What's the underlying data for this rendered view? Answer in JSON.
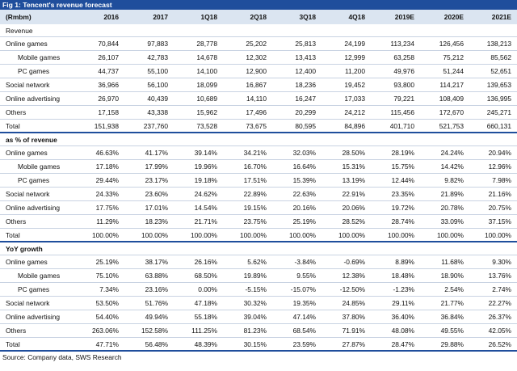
{
  "title": "Fig 1: Tencent's revenue forecast",
  "header": [
    "(Rmbm)",
    "2016",
    "2017",
    "1Q18",
    "2Q18",
    "3Q18",
    "4Q18",
    "2019E",
    "2020E",
    "2021E"
  ],
  "revenue": {
    "heading": "Revenue",
    "rows": [
      {
        "label": "Online games",
        "indent": false,
        "values": [
          "70,844",
          "97,883",
          "28,778",
          "25,202",
          "25,813",
          "24,199",
          "113,234",
          "126,456",
          "138,213"
        ]
      },
      {
        "label": "Mobile games",
        "indent": true,
        "values": [
          "26,107",
          "42,783",
          "14,678",
          "12,302",
          "13,413",
          "12,999",
          "63,258",
          "75,212",
          "85,562"
        ]
      },
      {
        "label": "PC games",
        "indent": true,
        "values": [
          "44,737",
          "55,100",
          "14,100",
          "12,900",
          "12,400",
          "11,200",
          "49,976",
          "51,244",
          "52,651"
        ]
      },
      {
        "label": "Social network",
        "indent": false,
        "values": [
          "36,966",
          "56,100",
          "18,099",
          "16,867",
          "18,236",
          "19,452",
          "93,800",
          "114,217",
          "139,653"
        ]
      },
      {
        "label": "Online advertising",
        "indent": false,
        "values": [
          "26,970",
          "40,439",
          "10,689",
          "14,110",
          "16,247",
          "17,033",
          "79,221",
          "108,409",
          "136,995"
        ]
      },
      {
        "label": "Others",
        "indent": false,
        "values": [
          "17,158",
          "43,338",
          "15,962",
          "17,496",
          "20,299",
          "24,212",
          "115,456",
          "172,670",
          "245,271"
        ]
      },
      {
        "label": "Total",
        "indent": false,
        "values": [
          "151,938",
          "237,760",
          "73,528",
          "73,675",
          "80,595",
          "84,896",
          "401,710",
          "521,753",
          "660,131"
        ]
      }
    ]
  },
  "pct": {
    "heading": "as % of revenue",
    "rows": [
      {
        "label": "Online games",
        "indent": false,
        "values": [
          "46.63%",
          "41.17%",
          "39.14%",
          "34.21%",
          "32.03%",
          "28.50%",
          "28.19%",
          "24.24%",
          "20.94%"
        ]
      },
      {
        "label": "Mobile games",
        "indent": true,
        "values": [
          "17.18%",
          "17.99%",
          "19.96%",
          "16.70%",
          "16.64%",
          "15.31%",
          "15.75%",
          "14.42%",
          "12.96%"
        ]
      },
      {
        "label": "PC games",
        "indent": true,
        "values": [
          "29.44%",
          "23.17%",
          "19.18%",
          "17.51%",
          "15.39%",
          "13.19%",
          "12.44%",
          "9.82%",
          "7.98%"
        ]
      },
      {
        "label": "Social network",
        "indent": false,
        "values": [
          "24.33%",
          "23.60%",
          "24.62%",
          "22.89%",
          "22.63%",
          "22.91%",
          "23.35%",
          "21.89%",
          "21.16%"
        ]
      },
      {
        "label": "Online advertising",
        "indent": false,
        "values": [
          "17.75%",
          "17.01%",
          "14.54%",
          "19.15%",
          "20.16%",
          "20.06%",
          "19.72%",
          "20.78%",
          "20.75%"
        ]
      },
      {
        "label": "Others",
        "indent": false,
        "values": [
          "11.29%",
          "18.23%",
          "21.71%",
          "23.75%",
          "25.19%",
          "28.52%",
          "28.74%",
          "33.09%",
          "37.15%"
        ]
      },
      {
        "label": "Total",
        "indent": false,
        "values": [
          "100.00%",
          "100.00%",
          "100.00%",
          "100.00%",
          "100.00%",
          "100.00%",
          "100.00%",
          "100.00%",
          "100.00%"
        ]
      }
    ]
  },
  "yoy": {
    "heading": "YoY growth",
    "rows": [
      {
        "label": "Online games",
        "indent": false,
        "values": [
          "25.19%",
          "38.17%",
          "26.16%",
          "5.62%",
          "-3.84%",
          "-0.69%",
          "8.89%",
          "11.68%",
          "9.30%"
        ]
      },
      {
        "label": "Mobile games",
        "indent": true,
        "values": [
          "75.10%",
          "63.88%",
          "68.50%",
          "19.89%",
          "9.55%",
          "12.38%",
          "18.48%",
          "18.90%",
          "13.76%"
        ]
      },
      {
        "label": "PC games",
        "indent": true,
        "values": [
          "7.34%",
          "23.16%",
          "0.00%",
          "-5.15%",
          "-15.07%",
          "-12.50%",
          "-1.23%",
          "2.54%",
          "2.74%"
        ]
      },
      {
        "label": "Social network",
        "indent": false,
        "values": [
          "53.50%",
          "51.76%",
          "47.18%",
          "30.32%",
          "19.35%",
          "24.85%",
          "29.11%",
          "21.77%",
          "22.27%"
        ]
      },
      {
        "label": "Online advertising",
        "indent": false,
        "values": [
          "54.40%",
          "49.94%",
          "55.18%",
          "39.04%",
          "47.14%",
          "37.80%",
          "36.40%",
          "36.84%",
          "26.37%"
        ]
      },
      {
        "label": "Others",
        "indent": false,
        "values": [
          "263.06%",
          "152.58%",
          "111.25%",
          "81.23%",
          "68.54%",
          "71.91%",
          "48.08%",
          "49.55%",
          "42.05%"
        ]
      },
      {
        "label": "Total",
        "indent": false,
        "values": [
          "47.71%",
          "56.48%",
          "48.39%",
          "30.15%",
          "23.59%",
          "27.87%",
          "28.47%",
          "29.88%",
          "26.52%"
        ]
      }
    ]
  },
  "source": "Source: Company data, SWS Research"
}
